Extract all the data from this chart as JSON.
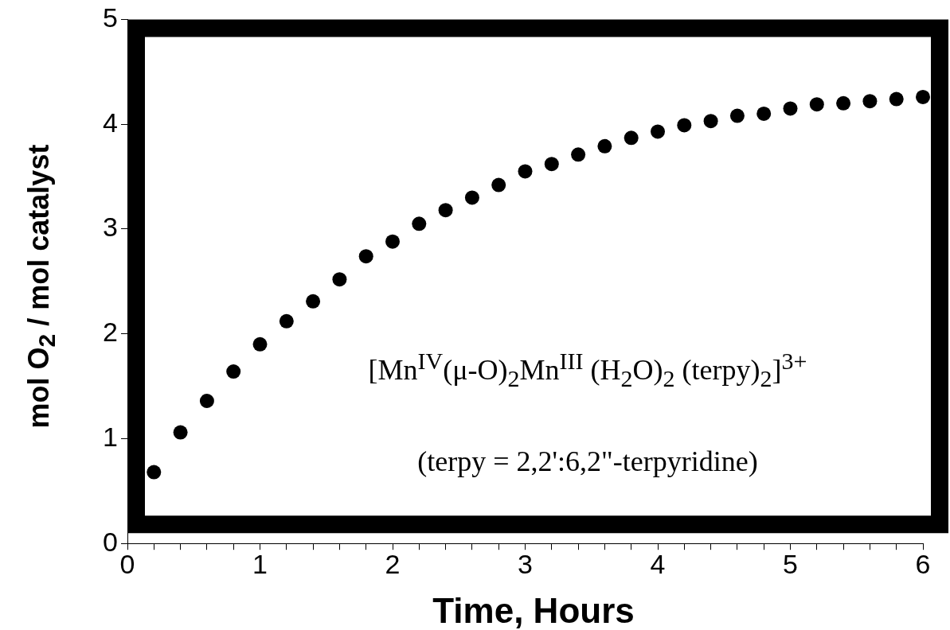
{
  "chart_data": {
    "type": "scatter",
    "xlabel": "Time, Hours",
    "ylabel": "mol O$_{2}$ / mol catalyst",
    "annotations": [
      "[Mn$^{IV}$(μ-O)$_{2}$Mn$^{III}$ (H$_{2}$O)$_{2}$ (terpy)$_{2}$]$^{3+}$",
      "(terpy = 2,2':6,2\"-terpyridine)"
    ],
    "x": [
      0.2,
      0.4,
      0.6,
      0.8,
      1.0,
      1.2,
      1.4,
      1.6,
      1.8,
      2.0,
      2.2,
      2.4,
      2.6,
      2.8,
      3.0,
      3.2,
      3.4,
      3.6,
      3.8,
      4.0,
      4.2,
      4.4,
      4.6,
      4.8,
      5.0,
      5.2,
      5.4,
      5.6,
      5.8,
      6.0
    ],
    "series": [
      {
        "color": "#000000",
        "values": [
          0.68,
          1.06,
          1.36,
          1.64,
          1.9,
          2.12,
          2.31,
          2.52,
          2.74,
          2.88,
          3.05,
          3.18,
          3.3,
          3.42,
          3.55,
          3.62,
          3.71,
          3.79,
          3.87,
          3.93,
          3.99,
          4.03,
          4.08,
          4.1,
          4.15,
          4.19,
          4.2,
          4.22,
          4.24,
          4.26
        ]
      }
    ],
    "xlim": [
      0,
      6
    ],
    "ylim": [
      0,
      5
    ],
    "xticks": [
      0,
      {
        "value": 0.2,
        "label": null
      },
      {
        "value": 0.4,
        "label": null
      },
      {
        "value": 0.6,
        "label": null
      },
      {
        "value": 0.8,
        "label": null
      },
      1,
      {
        "value": 1.2,
        "label": null
      },
      {
        "value": 1.4,
        "label": null
      },
      {
        "value": 1.6,
        "label": null
      },
      {
        "value": 1.8,
        "label": null
      },
      2,
      {
        "value": 2.2,
        "label": null
      },
      {
        "value": 2.4,
        "label": null
      },
      {
        "value": 2.6,
        "label": null
      },
      {
        "value": 2.8,
        "label": null
      },
      3,
      {
        "value": 3.2,
        "label": null
      },
      {
        "value": 3.4,
        "label": null
      },
      {
        "value": 3.6,
        "label": null
      },
      {
        "value": 3.8,
        "label": null
      },
      4,
      {
        "value": 4.2,
        "label": null
      },
      {
        "value": 4.4,
        "label": null
      },
      {
        "value": 4.6,
        "label": null
      },
      {
        "value": 4.8,
        "label": null
      },
      5,
      {
        "value": 5.2,
        "label": null
      },
      {
        "value": 5.4,
        "label": null
      },
      {
        "value": 5.6,
        "label": null
      },
      {
        "value": 5.8,
        "label": null
      },
      6
    ],
    "yticks": [
      0,
      1,
      2,
      3,
      4,
      5
    ],
    "grid": false,
    "legend": false,
    "marker": "circle"
  }
}
